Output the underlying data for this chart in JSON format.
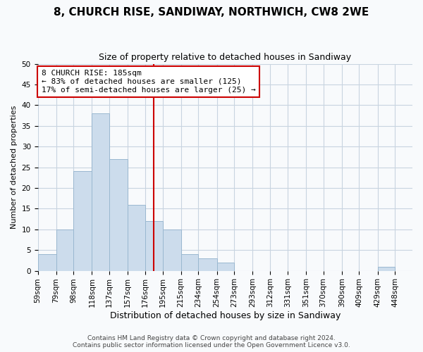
{
  "title1": "8, CHURCH RISE, SANDIWAY, NORTHWICH, CW8 2WE",
  "title2": "Size of property relative to detached houses in Sandiway",
  "xlabel": "Distribution of detached houses by size in Sandiway",
  "ylabel": "Number of detached properties",
  "bar_color": "#ccdcec",
  "bar_edge_color": "#9ab8d0",
  "bin_labels": [
    "59sqm",
    "79sqm",
    "98sqm",
    "118sqm",
    "137sqm",
    "157sqm",
    "176sqm",
    "195sqm",
    "215sqm",
    "234sqm",
    "254sqm",
    "273sqm",
    "293sqm",
    "312sqm",
    "331sqm",
    "351sqm",
    "370sqm",
    "390sqm",
    "409sqm",
    "429sqm",
    "448sqm"
  ],
  "bar_heights": [
    4,
    10,
    24,
    38,
    27,
    16,
    12,
    10,
    4,
    3,
    2,
    0,
    0,
    0,
    0,
    0,
    0,
    0,
    0,
    1,
    0
  ],
  "bin_edges": [
    59,
    79,
    98,
    118,
    137,
    157,
    176,
    195,
    215,
    234,
    254,
    273,
    293,
    312,
    331,
    351,
    370,
    390,
    409,
    429,
    448,
    467
  ],
  "vline_x": 185,
  "vline_color": "#cc0000",
  "ylim": [
    0,
    50
  ],
  "yticks": [
    0,
    5,
    10,
    15,
    20,
    25,
    30,
    35,
    40,
    45,
    50
  ],
  "annotation_title": "8 CHURCH RISE: 185sqm",
  "annotation_line1": "← 83% of detached houses are smaller (125)",
  "annotation_line2": "17% of semi-detached houses are larger (25) →",
  "annotation_box_color": "#ffffff",
  "annotation_box_edge": "#cc0000",
  "footer1": "Contains HM Land Registry data © Crown copyright and database right 2024.",
  "footer2": "Contains public sector information licensed under the Open Government Licence v3.0.",
  "grid_color": "#c8d4e0",
  "background_color": "#f8fafc",
  "title1_fontsize": 11,
  "title2_fontsize": 9,
  "ylabel_fontsize": 8,
  "xlabel_fontsize": 9,
  "tick_fontsize": 7.5,
  "annotation_fontsize": 8,
  "footer_fontsize": 6.5
}
